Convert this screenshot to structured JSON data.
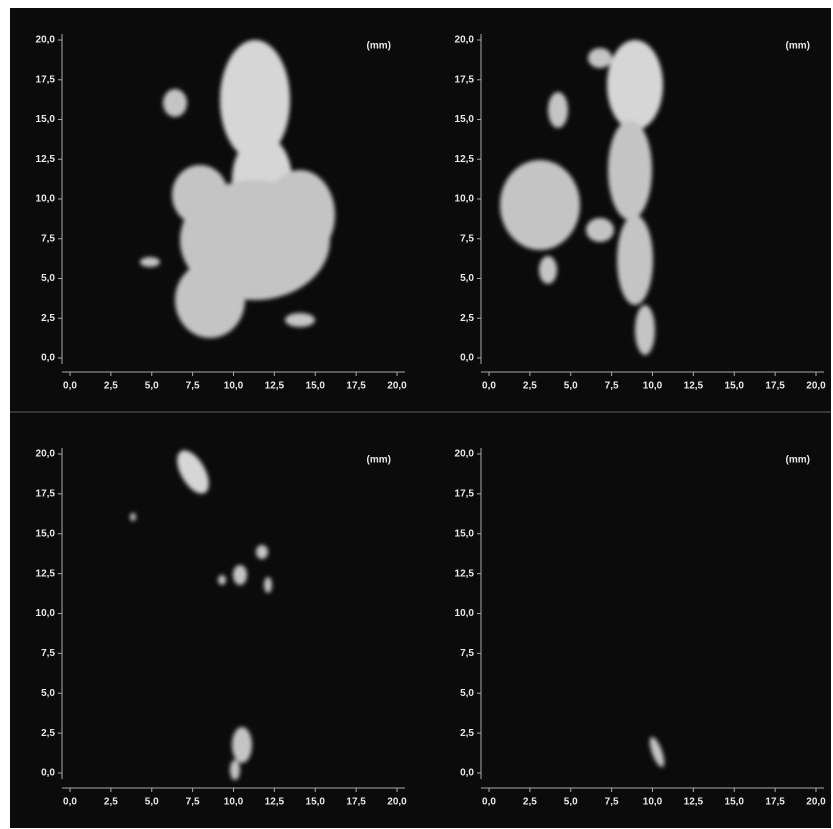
{
  "panels": [
    {
      "unit": "(mm)",
      "x_ticks": [
        "0,0",
        "2,5",
        "5,0",
        "7,5",
        "10,0",
        "12,5",
        "15,0",
        "17,5",
        "20,0"
      ],
      "y_ticks": [
        "0,0",
        "2,5",
        "5,0",
        "7,5",
        "10,0",
        "12,5",
        "15,0",
        "17,5",
        "20,0"
      ]
    },
    {
      "unit": "(mm)",
      "x_ticks": [
        "0,0",
        "2,5",
        "5,0",
        "7,5",
        "10,0",
        "12,5",
        "15,0",
        "17,5",
        "20,0"
      ],
      "y_ticks": [
        "0,0",
        "2,5",
        "5,0",
        "7,5",
        "10,0",
        "12,5",
        "15,0",
        "17,5",
        "20,0"
      ]
    },
    {
      "unit": "(mm)",
      "x_ticks": [
        "0,0",
        "2,5",
        "5,0",
        "7,5",
        "10,0",
        "12,5",
        "15,0",
        "17,5",
        "20,0"
      ],
      "y_ticks": [
        "0,0",
        "2,5",
        "5,0",
        "7,5",
        "10,0",
        "12,5",
        "15,0",
        "17,5",
        "20,0"
      ]
    },
    {
      "unit": "(mm)",
      "x_ticks": [
        "0,0",
        "2,5",
        "5,0",
        "7,5",
        "10,0",
        "12,5",
        "15,0",
        "17,5",
        "20,0"
      ],
      "y_ticks": [
        "0,0",
        "2,5",
        "5,0",
        "7,5",
        "10,0",
        "12,5",
        "15,0",
        "17,5",
        "20,0"
      ]
    }
  ]
}
